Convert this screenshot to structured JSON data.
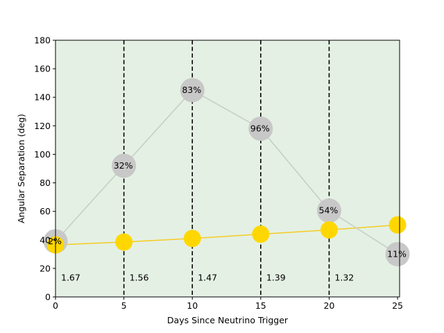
{
  "chart_data": {
    "type": "line",
    "title": "",
    "xlabel": "Days Since Neutrino Trigger",
    "ylabel": "Angular Separation (deg)",
    "xlim": [
      0,
      25.15
    ],
    "ylim": [
      0,
      180
    ],
    "xticks": [
      0,
      5,
      10,
      15,
      20,
      25
    ],
    "yticks": [
      0,
      20,
      40,
      60,
      80,
      100,
      120,
      140,
      160,
      180
    ],
    "grid": false,
    "legend": "none",
    "background_color": "#e4f0e4",
    "vertical_lines": [
      5,
      10,
      15,
      20
    ],
    "series": [
      {
        "color": "#ffd700",
        "line_color": "#f5cc20",
        "x": [
          0,
          5,
          10,
          15,
          20,
          25
        ],
        "y": [
          36.5,
          38.5,
          41,
          44,
          47,
          50.5
        ]
      },
      {
        "color": "#c8c8c8",
        "line_color": "#c4cec4",
        "x": [
          0,
          5,
          10,
          15,
          20,
          25
        ],
        "y": [
          39,
          92,
          145,
          118,
          60.5,
          30
        ],
        "point_labels": [
          "2%",
          "32%",
          "83%",
          "96%",
          "54%",
          "11%"
        ]
      }
    ],
    "annotations": [
      {
        "x": 0,
        "y": 12,
        "text": "1.67"
      },
      {
        "x": 5,
        "y": 12,
        "text": "1.56"
      },
      {
        "x": 10,
        "y": 12,
        "text": "1.47"
      },
      {
        "x": 15,
        "y": 12,
        "text": "1.39"
      },
      {
        "x": 20,
        "y": 12,
        "text": "1.32"
      }
    ]
  }
}
